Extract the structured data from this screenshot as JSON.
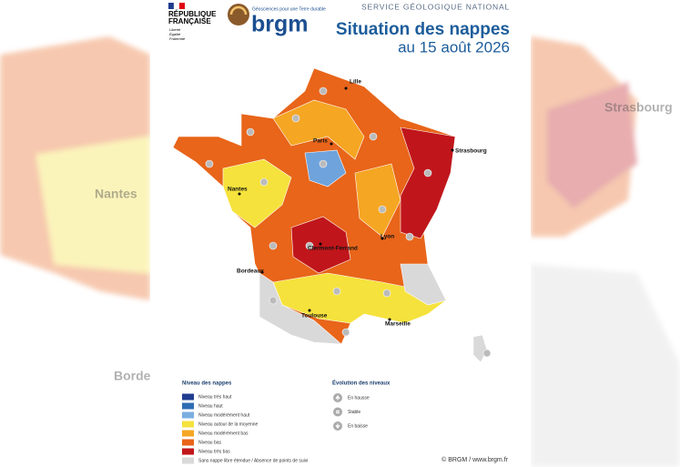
{
  "header": {
    "republique": "RÉPUBLIQUE",
    "francaise": "FRANÇAISE",
    "motto": [
      "Liberté",
      "Égalité",
      "Fraternité"
    ],
    "tagline": "Géosciences pour une Terre durable",
    "logo": "brgm",
    "service": "SERVICE GÉOLOGIQUE NATIONAL",
    "title": "Situation des nappes",
    "subtitle": "au 15 août 2026"
  },
  "cities": [
    "Lille",
    "Paris",
    "Strasbourg",
    "Nantes",
    "Clermont-Ferrand",
    "Lyon",
    "Bordeaux",
    "Toulouse",
    "Marseille"
  ],
  "background_labels": [
    "Nantes",
    "Strasbourg",
    "Borde"
  ],
  "legend_levels": {
    "title": "Niveau des nappes",
    "items": [
      {
        "label": "Niveau très haut",
        "color": "#1f3c8f"
      },
      {
        "label": "Niveau haut",
        "color": "#2e6db4"
      },
      {
        "label": "Niveau modérément haut",
        "color": "#7aaee0"
      },
      {
        "label": "Niveau autour de la moyenne",
        "color": "#f5e23c"
      },
      {
        "label": "Niveau modérément bas",
        "color": "#f5a623"
      },
      {
        "label": "Niveau bas",
        "color": "#e8651a"
      },
      {
        "label": "Niveau très bas",
        "color": "#c0161b"
      },
      {
        "label": "Sans nappe libre étendue / Absence de points de suivi",
        "color": "#d9d9d9"
      }
    ]
  },
  "legend_trend": {
    "title": "Évolution des niveaux",
    "items": [
      "En hausse",
      "Stable",
      "En baisse"
    ]
  },
  "credit": "© BRGM / www.brgm.fr"
}
